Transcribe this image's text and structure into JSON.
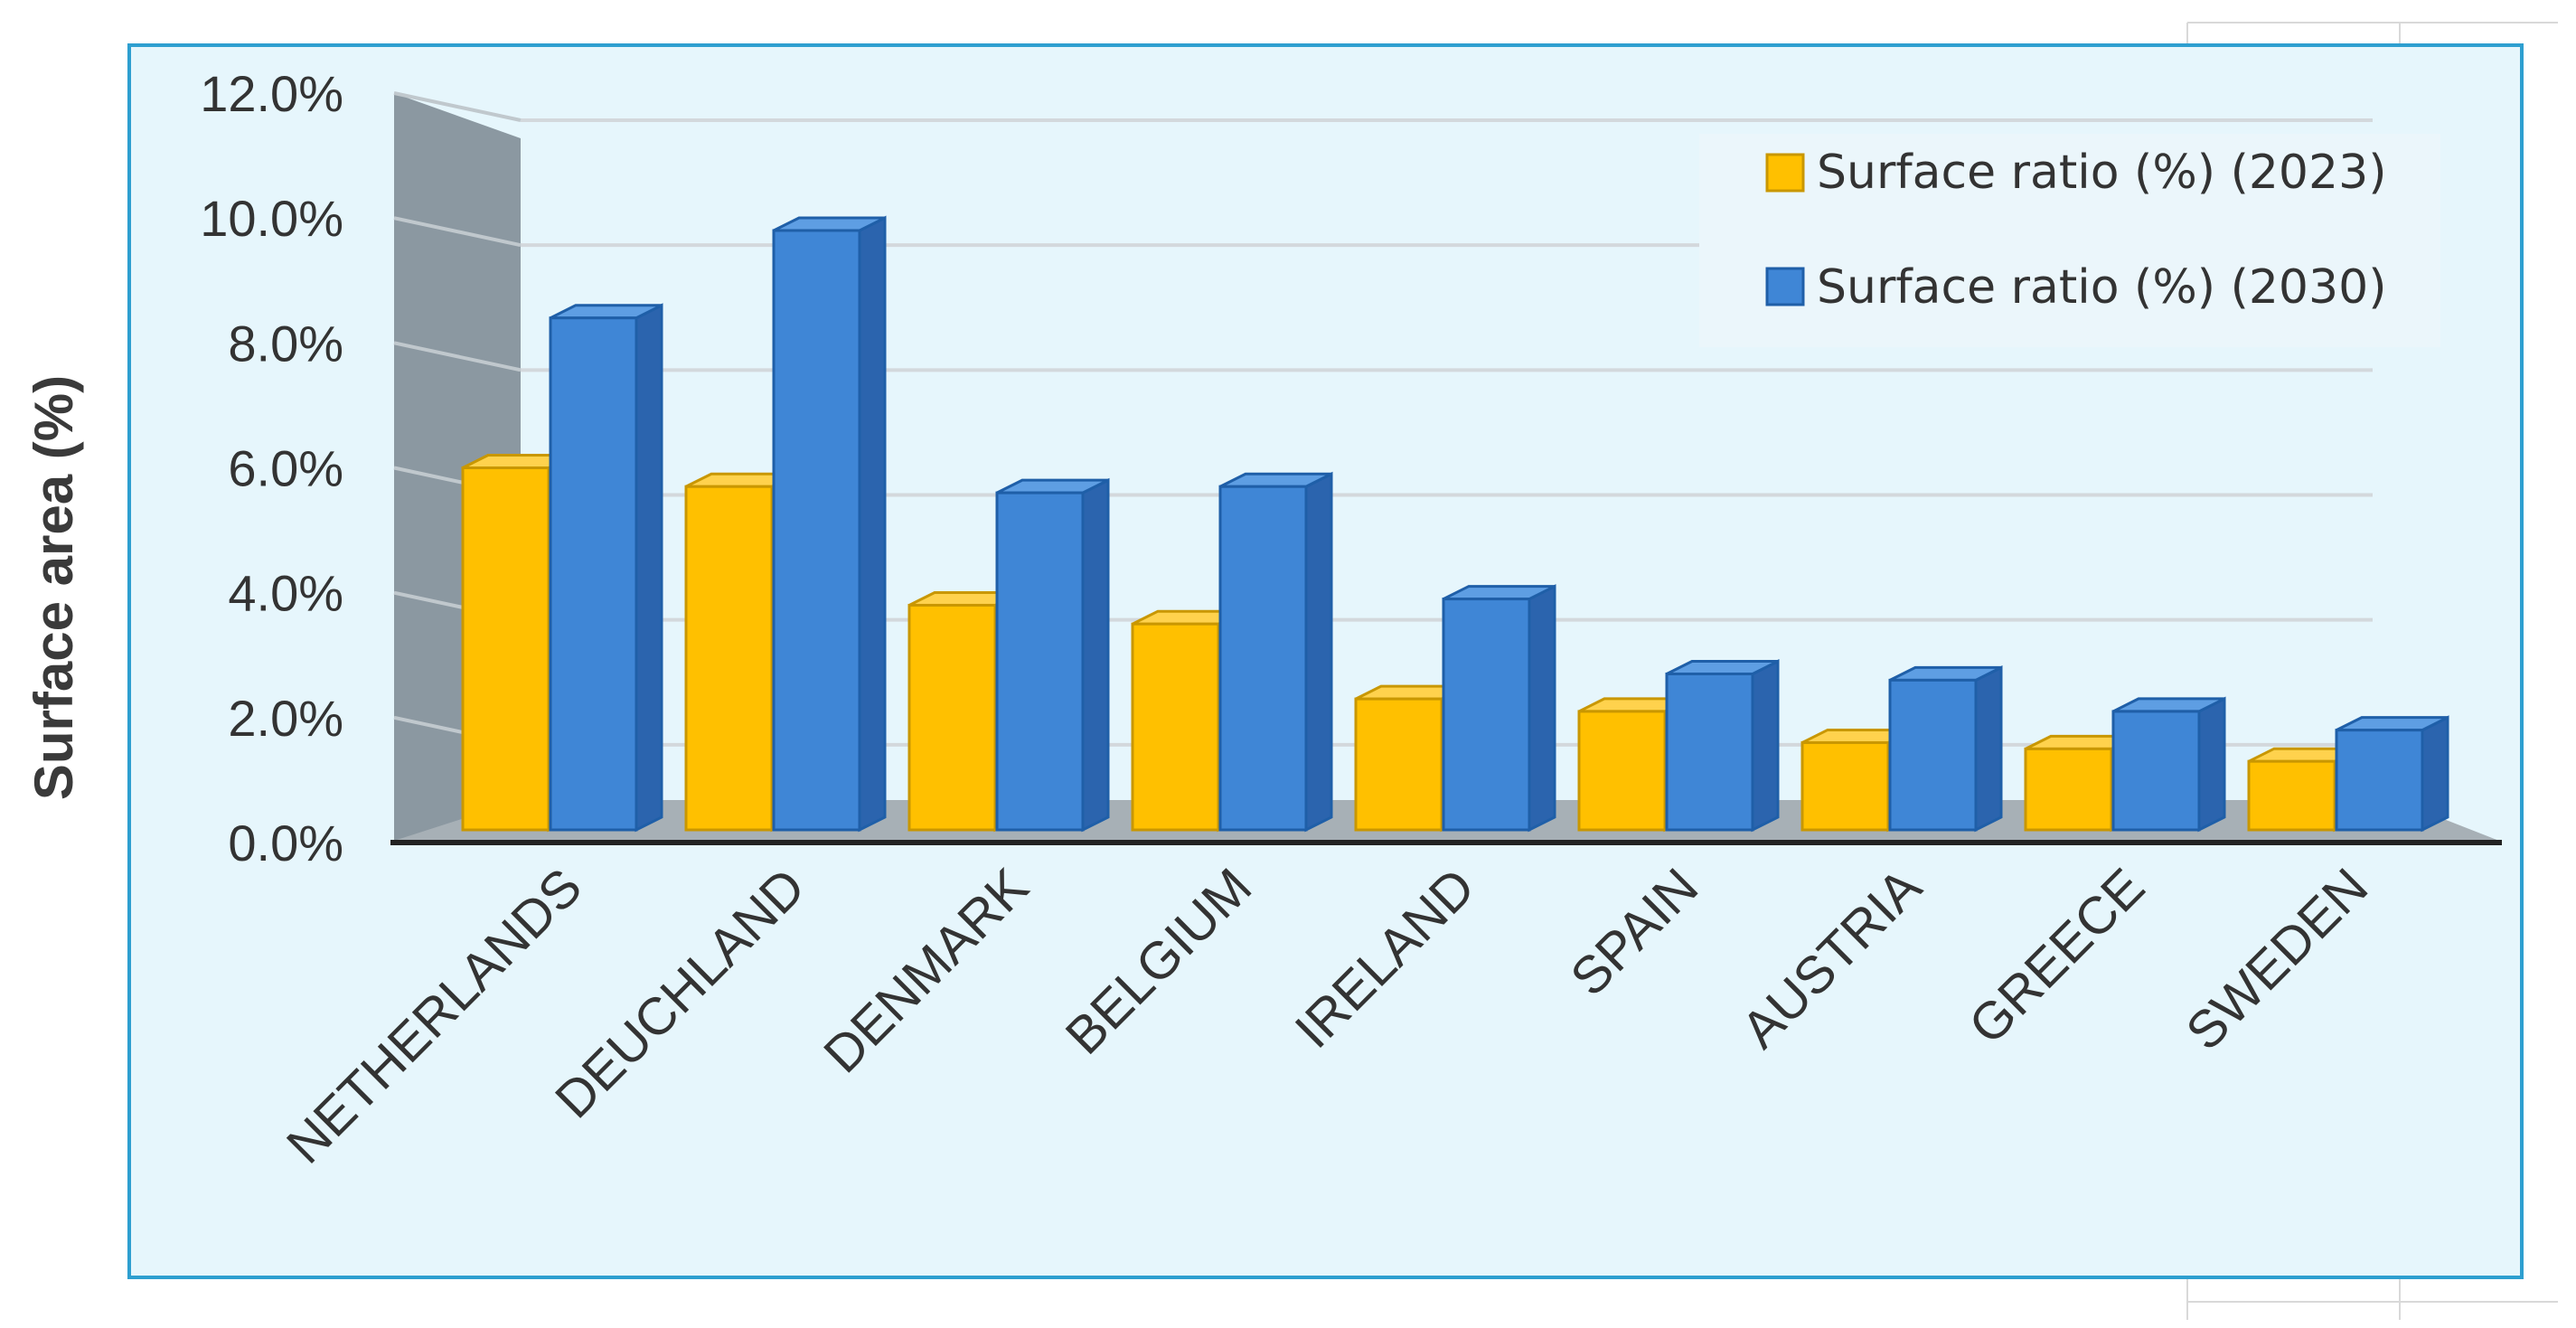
{
  "chart_data": {
    "type": "bar",
    "title": "",
    "xlabel": "",
    "ylabel": "Surface area (%)",
    "ylim": [
      0,
      12
    ],
    "yticks": [
      "0.0%",
      "2.0%",
      "4.0%",
      "6.0%",
      "8.0%",
      "10.0%",
      "12.0%"
    ],
    "grid": true,
    "legend_position": "top-right",
    "categories": [
      "NETHERLANDS",
      "DEUCHLAND",
      "DENMARK",
      "BELGIUM",
      "IRELAND",
      "SPAIN",
      "AUSTRIA",
      "GREECE",
      "SWEDEN"
    ],
    "series": [
      {
        "name": "Surface ratio (%) (2023)",
        "color": "#FFC000",
        "values": [
          6.0,
          5.7,
          3.8,
          3.5,
          2.3,
          2.1,
          1.6,
          1.5,
          1.3
        ]
      },
      {
        "name": "Surface ratio (%) (2030)",
        "color": "#3F86D6",
        "values": [
          8.4,
          9.8,
          5.6,
          5.7,
          3.9,
          2.7,
          2.6,
          2.1,
          1.8
        ]
      }
    ]
  }
}
